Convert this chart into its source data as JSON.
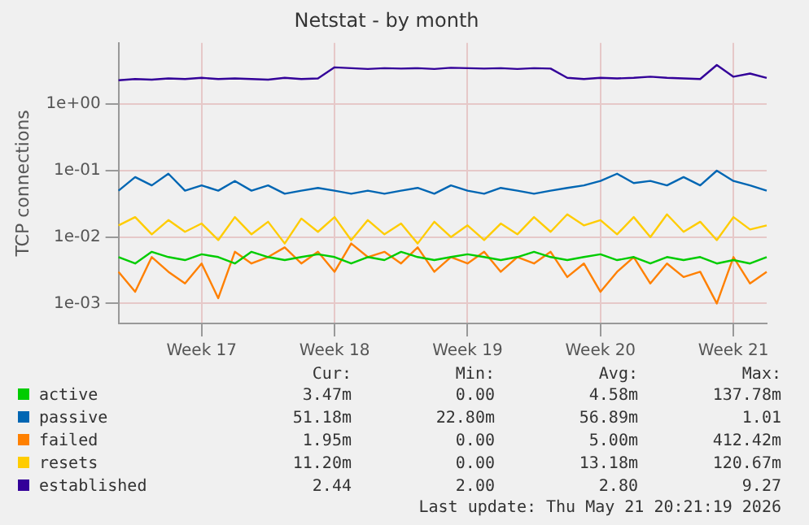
{
  "chart_data": {
    "type": "line",
    "title": "Netstat - by month",
    "ylabel": "TCP connections",
    "categories": [
      null,
      null,
      null,
      null,
      null,
      "Week 17",
      null,
      null,
      null,
      null,
      null,
      null,
      null,
      "Week 18",
      null,
      null,
      null,
      null,
      null,
      null,
      null,
      "Week 19",
      null,
      null,
      null,
      null,
      null,
      null,
      null,
      "Week 20",
      null,
      null,
      null,
      null,
      null,
      null,
      null,
      "Week 21",
      null,
      null
    ],
    "ylim": [
      0.0005,
      8.4
    ],
    "yticks": [
      {
        "value": 0.001,
        "label": "1e-03"
      },
      {
        "value": 0.01,
        "label": "1e-02"
      },
      {
        "value": 0.1,
        "label": "1e-01"
      },
      {
        "value": 1,
        "label": "1e+00"
      }
    ],
    "log": "y",
    "grid": true,
    "legend": "bottom",
    "marker": "none",
    "line_style": "solid",
    "series": [
      {
        "name": "active",
        "color": "#00cc00",
        "values": [
          0.005,
          0.004,
          0.006,
          0.005,
          0.0045,
          0.0055,
          0.005,
          0.004,
          0.006,
          0.005,
          0.0045,
          0.005,
          0.0055,
          0.005,
          0.004,
          0.005,
          0.0045,
          0.006,
          0.005,
          0.0045,
          0.005,
          0.0055,
          0.005,
          0.0045,
          0.005,
          0.006,
          0.005,
          0.0045,
          0.005,
          0.0055,
          0.0045,
          0.005,
          0.004,
          0.005,
          0.0045,
          0.005,
          0.004,
          0.0045,
          0.004,
          0.005
        ]
      },
      {
        "name": "passive",
        "color": "#0066b3",
        "values": [
          0.05,
          0.08,
          0.06,
          0.09,
          0.05,
          0.06,
          0.05,
          0.07,
          0.05,
          0.06,
          0.045,
          0.05,
          0.055,
          0.05,
          0.045,
          0.05,
          0.045,
          0.05,
          0.055,
          0.045,
          0.06,
          0.05,
          0.045,
          0.055,
          0.05,
          0.045,
          0.05,
          0.055,
          0.06,
          0.07,
          0.09,
          0.065,
          0.07,
          0.06,
          0.08,
          0.06,
          0.1,
          0.07,
          0.06,
          0.05
        ]
      },
      {
        "name": "failed",
        "color": "#ff8000",
        "values": [
          0.003,
          0.0015,
          0.005,
          0.003,
          0.002,
          0.004,
          0.0012,
          0.006,
          0.004,
          0.005,
          0.007,
          0.004,
          0.006,
          0.003,
          0.008,
          0.005,
          0.006,
          0.004,
          0.007,
          0.003,
          0.005,
          0.004,
          0.006,
          0.003,
          0.005,
          0.004,
          0.006,
          0.0025,
          0.004,
          0.0015,
          0.003,
          0.005,
          0.002,
          0.004,
          0.0025,
          0.003,
          0.001,
          0.005,
          0.002,
          0.003
        ]
      },
      {
        "name": "resets",
        "color": "#ffcc00",
        "values": [
          0.015,
          0.02,
          0.011,
          0.018,
          0.012,
          0.016,
          0.009,
          0.02,
          0.011,
          0.017,
          0.008,
          0.019,
          0.012,
          0.02,
          0.009,
          0.018,
          0.011,
          0.016,
          0.008,
          0.017,
          0.01,
          0.015,
          0.009,
          0.016,
          0.011,
          0.02,
          0.012,
          0.022,
          0.015,
          0.018,
          0.011,
          0.02,
          0.01,
          0.022,
          0.012,
          0.017,
          0.009,
          0.02,
          0.013,
          0.015
        ]
      },
      {
        "name": "established",
        "color": "#330099",
        "values": [
          2.3,
          2.4,
          2.35,
          2.45,
          2.4,
          2.5,
          2.4,
          2.45,
          2.4,
          2.35,
          2.5,
          2.4,
          2.45,
          3.6,
          3.5,
          3.4,
          3.5,
          3.45,
          3.5,
          3.4,
          3.55,
          3.5,
          3.45,
          3.5,
          3.4,
          3.5,
          3.45,
          2.5,
          2.4,
          2.5,
          2.45,
          2.5,
          2.6,
          2.5,
          2.45,
          2.4,
          3.9,
          2.6,
          2.9,
          2.5
        ]
      }
    ],
    "annotations": [
      "Cur:",
      "Min:",
      "Avg:",
      "Max:",
      "3.47m",
      "0.00",
      "4.58m",
      "137.78m",
      "51.18m",
      "22.80m",
      "56.89m",
      "1.01",
      "1.95m",
      "0.00",
      "5.00m",
      "412.42m",
      "11.20m",
      "0.00",
      "13.18m",
      "120.67m",
      "2.44",
      "2.00",
      "2.80",
      "9.27",
      "Last update: Thu May 21 20:21:19 2026"
    ]
  }
}
